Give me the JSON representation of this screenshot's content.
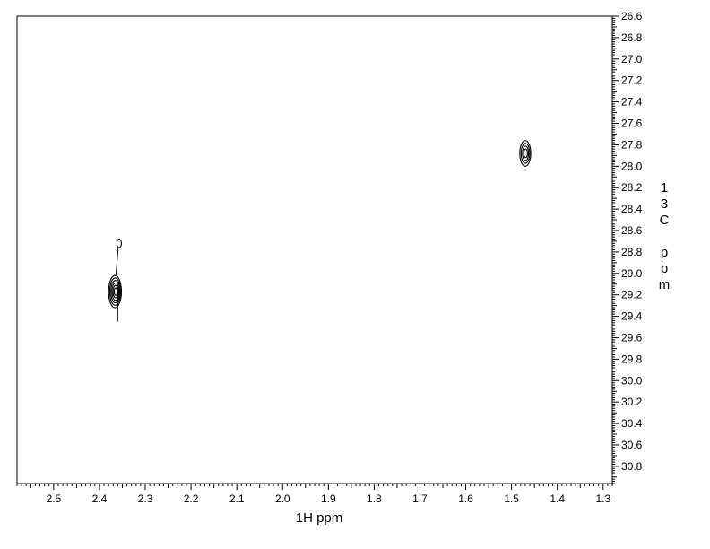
{
  "chart_data": {
    "type": "contour",
    "xlabel": "1H ppm",
    "ylabel_chars": [
      "1",
      "3",
      "C",
      "",
      "p",
      "p",
      "m"
    ],
    "xlim": [
      2.58,
      1.28
    ],
    "ylim": [
      26.6,
      30.96
    ],
    "x_ticks": [
      "2.5",
      "2.4",
      "2.3",
      "2.2",
      "2.1",
      "2.0",
      "1.9",
      "1.8",
      "1.7",
      "1.6",
      "1.5",
      "1.4",
      "1.3"
    ],
    "y_ticks": [
      "26.6",
      "26.8",
      "27.0",
      "27.2",
      "27.4",
      "27.6",
      "27.8",
      "28.0",
      "28.2",
      "28.4",
      "28.6",
      "28.8",
      "29.0",
      "29.2",
      "29.4",
      "29.6",
      "29.8",
      "30.0",
      "30.2",
      "30.4",
      "30.6",
      "30.8"
    ],
    "peaks": [
      {
        "x": 1.47,
        "y": 27.88,
        "rx": 0.012,
        "ry": 0.12,
        "levels": 4
      },
      {
        "x": 2.366,
        "y": 29.17,
        "rx": 0.014,
        "ry": 0.15,
        "levels": 6
      },
      {
        "x": 2.357,
        "y": 28.72,
        "rx": 0.005,
        "ry": 0.04,
        "levels": 1
      }
    ],
    "grid": false,
    "legend": "none"
  }
}
